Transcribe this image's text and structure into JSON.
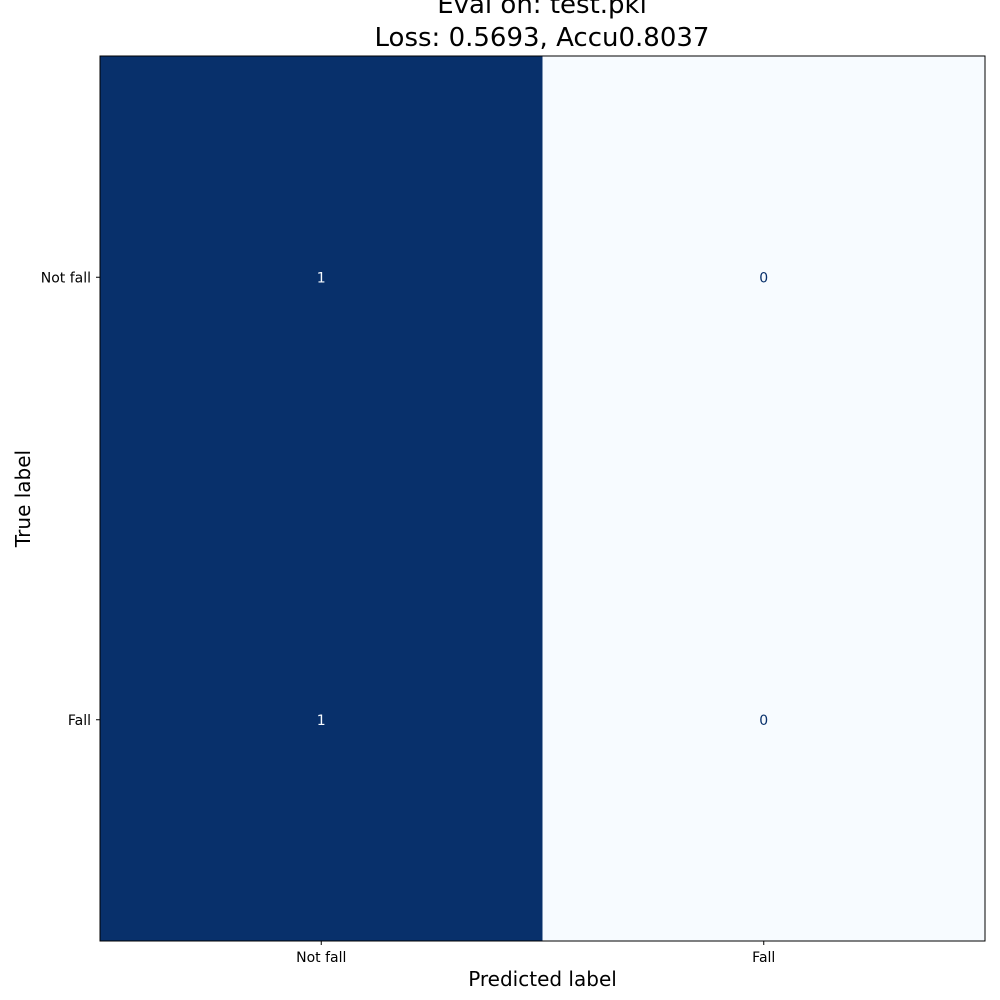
{
  "chart_data": {
    "type": "heatmap",
    "title_lines": [
      "Eval on: test.pkl",
      "Loss: 0.5693, Accu0.8037"
    ],
    "xlabel": "Predicted label",
    "ylabel": "True label",
    "x_categories": [
      "Not fall",
      "Fall"
    ],
    "y_categories": [
      "Not fall",
      "Fall"
    ],
    "values": [
      [
        1,
        0
      ],
      [
        1,
        0
      ]
    ],
    "value_labels": [
      [
        "1",
        "0"
      ],
      [
        "1",
        "0"
      ]
    ],
    "colormap": "Blues",
    "colors": {
      "high": "#08306b",
      "low": "#f7fbff",
      "text_on_dark": "#f7fbff",
      "text_on_light": "#08306b"
    },
    "colorbar": false
  }
}
